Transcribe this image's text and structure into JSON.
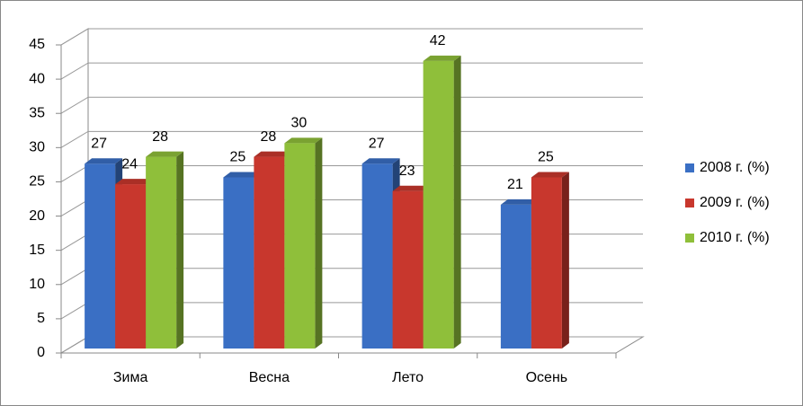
{
  "chart_data": {
    "type": "bar3d",
    "categories": [
      "Зима",
      "Весна",
      "Лето",
      "Осень"
    ],
    "series": [
      {
        "name": "2008 г. (%)",
        "color": "#3a6fc4",
        "values": [
          27,
          25,
          27,
          21
        ]
      },
      {
        "name": "2009 г. (%)",
        "color": "#c8372d",
        "values": [
          24,
          28,
          23,
          25
        ]
      },
      {
        "name": "2010 г. (%)",
        "color": "#8fbf3a",
        "values": [
          28,
          30,
          42,
          null
        ]
      }
    ],
    "ylim": [
      0,
      45
    ],
    "yticks": [
      0,
      5,
      10,
      15,
      20,
      25,
      30,
      35,
      40,
      45
    ],
    "grid": true,
    "legend": "right"
  }
}
